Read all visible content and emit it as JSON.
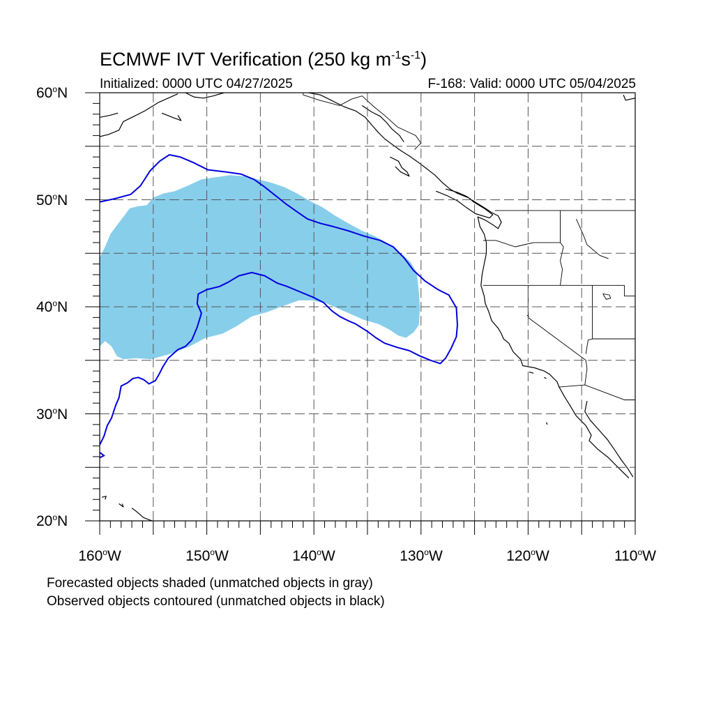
{
  "title": {
    "main": "ECMWF IVT Verification (250 kg m",
    "exp1": "-1",
    "mid": "s",
    "exp2": "-1",
    "close": ")"
  },
  "subtitle": {
    "initialized": "Initialized: 0000 UTC 04/27/2025",
    "valid": "F-168: Valid: 0000 UTC 05/04/2025"
  },
  "axes": {
    "lat_labels": [
      {
        "num": "60",
        "deg": "o",
        "hem": "N"
      },
      {
        "num": "50",
        "deg": "o",
        "hem": "N"
      },
      {
        "num": "40",
        "deg": "o",
        "hem": "N"
      },
      {
        "num": "30",
        "deg": "o",
        "hem": "N"
      },
      {
        "num": "20",
        "deg": "o",
        "hem": "N"
      }
    ],
    "lon_labels": [
      {
        "num": "160",
        "deg": "o",
        "hem": "W"
      },
      {
        "num": "150",
        "deg": "o",
        "hem": "W"
      },
      {
        "num": "140",
        "deg": "o",
        "hem": "W"
      },
      {
        "num": "130",
        "deg": "o",
        "hem": "W"
      },
      {
        "num": "120",
        "deg": "o",
        "hem": "W"
      },
      {
        "num": "110",
        "deg": "o",
        "hem": "W"
      }
    ],
    "lat_range": [
      20,
      60
    ],
    "lon_range": [
      -160,
      -110
    ],
    "grid_spacing_deg": 5
  },
  "map": {
    "forecast_color": "#87CEEB",
    "observed_color": "#0000DD",
    "coast_color": "#000000",
    "forecast_object": [
      [
        -160,
        44.6
      ],
      [
        -159.5,
        45.6
      ],
      [
        -159,
        46.8
      ],
      [
        -158.4,
        47.6
      ],
      [
        -157.8,
        48.4
      ],
      [
        -157.2,
        49.2
      ],
      [
        -156.4,
        49.4
      ],
      [
        -155.6,
        49.5
      ],
      [
        -155,
        50.2
      ],
      [
        -154,
        50.6
      ],
      [
        -153,
        50.8
      ],
      [
        -151.8,
        51.3
      ],
      [
        -150.5,
        51.9
      ],
      [
        -149.2,
        52.1
      ],
      [
        -147.8,
        52.3
      ],
      [
        -146.5,
        52.2
      ],
      [
        -145.2,
        51.9
      ],
      [
        -144,
        51.6
      ],
      [
        -142.8,
        51.2
      ],
      [
        -141.6,
        50.6
      ],
      [
        -140.4,
        49.9
      ],
      [
        -139.2,
        49.3
      ],
      [
        -138,
        48.5
      ],
      [
        -136.8,
        47.8
      ],
      [
        -135.5,
        47.1
      ],
      [
        -134.3,
        46.6
      ],
      [
        -133.1,
        45.9
      ],
      [
        -132,
        45.1
      ],
      [
        -131,
        44.2
      ],
      [
        -130.4,
        43.2
      ],
      [
        -130.2,
        41.4
      ],
      [
        -130.1,
        39.8
      ],
      [
        -130.2,
        38.3
      ],
      [
        -130.7,
        37.6
      ],
      [
        -131.4,
        37.1
      ],
      [
        -132.1,
        37.3
      ],
      [
        -133,
        37.9
      ],
      [
        -134,
        38.4
      ],
      [
        -135.4,
        38.8
      ],
      [
        -137.2,
        39.6
      ],
      [
        -138.8,
        40.3
      ],
      [
        -140.2,
        40.6
      ],
      [
        -141.4,
        40.6
      ],
      [
        -142.8,
        40.1
      ],
      [
        -144.4,
        39.5
      ],
      [
        -145.8,
        39.1
      ],
      [
        -147.2,
        38.2
      ],
      [
        -148.5,
        37.5
      ],
      [
        -150.1,
        37.1
      ],
      [
        -151.6,
        36.3
      ],
      [
        -153.4,
        35.6
      ],
      [
        -155.2,
        35.1
      ],
      [
        -156.6,
        35.2
      ],
      [
        -157.8,
        35.1
      ],
      [
        -158.4,
        35.4
      ],
      [
        -158.9,
        36.3
      ],
      [
        -159.5,
        36.8
      ],
      [
        -160,
        36.3
      ]
    ],
    "observed_outer": [
      [
        -160,
        49.8
      ],
      [
        -158.6,
        50.1
      ],
      [
        -157.1,
        50.5
      ],
      [
        -156.2,
        51.3
      ],
      [
        -155.3,
        52.7
      ],
      [
        -154.4,
        53.6
      ],
      [
        -153.5,
        54.2
      ],
      [
        -152.5,
        54
      ],
      [
        -151.3,
        53.5
      ],
      [
        -149.9,
        52.8
      ],
      [
        -148.2,
        52.6
      ],
      [
        -146.8,
        52.4
      ],
      [
        -145.6,
        51.9
      ],
      [
        -144.6,
        51.2
      ],
      [
        -143.6,
        50.4
      ],
      [
        -142.6,
        49.6
      ],
      [
        -141.6,
        48.9
      ],
      [
        -140.6,
        48.2
      ],
      [
        -139.4,
        47.8
      ],
      [
        -138.2,
        47.5
      ],
      [
        -136.8,
        47.1
      ],
      [
        -135.3,
        46.6
      ],
      [
        -133.8,
        46.2
      ],
      [
        -132.6,
        45.6
      ],
      [
        -131.6,
        44.6
      ],
      [
        -130.7,
        43.4
      ],
      [
        -129.6,
        42.4
      ],
      [
        -128.4,
        41.6
      ],
      [
        -127.4,
        41.1
      ],
      [
        -126.7,
        39.9
      ],
      [
        -126.6,
        38.3
      ],
      [
        -126.7,
        37.2
      ],
      [
        -127.2,
        36.1
      ],
      [
        -127.7,
        35.2
      ],
      [
        -128.2,
        34.7
      ],
      [
        -129.1,
        35
      ],
      [
        -130.1,
        35.4
      ],
      [
        -131.1,
        35.9
      ],
      [
        -132.2,
        36.2
      ],
      [
        -133.4,
        36.6
      ],
      [
        -134.2,
        37.1
      ],
      [
        -135,
        37.7
      ],
      [
        -136.1,
        38.4
      ],
      [
        -136.8,
        38.7
      ],
      [
        -137.6,
        39.1
      ],
      [
        -138.3,
        39.6
      ],
      [
        -139.1,
        40.4
      ],
      [
        -140.1,
        40.9
      ],
      [
        -141.3,
        41.4
      ],
      [
        -142.5,
        41.9
      ],
      [
        -143.4,
        42.2
      ],
      [
        -144.6,
        42.9
      ],
      [
        -145.8,
        43.2
      ],
      [
        -147,
        42.9
      ],
      [
        -148,
        42.3
      ],
      [
        -148.8,
        41.9
      ],
      [
        -150,
        41.6
      ],
      [
        -150.8,
        41.2
      ],
      [
        -150.9,
        40.3
      ],
      [
        -150.5,
        39.4
      ],
      [
        -150.9,
        38.1
      ],
      [
        -151.4,
        36.9
      ],
      [
        -152,
        36.3
      ],
      [
        -152.7,
        36
      ],
      [
        -153.6,
        35.2
      ],
      [
        -154.1,
        34.4
      ],
      [
        -154.4,
        33.8
      ],
      [
        -154.8,
        33.1
      ],
      [
        -155.4,
        32.8
      ],
      [
        -155.9,
        33.2
      ],
      [
        -156.4,
        33.4
      ],
      [
        -156.9,
        33.3
      ],
      [
        -157.4,
        32.9
      ],
      [
        -158,
        32.6
      ],
      [
        -158.2,
        31.5
      ],
      [
        -158.5,
        30.8
      ],
      [
        -158.9,
        29.6
      ],
      [
        -159.3,
        28.9
      ],
      [
        -159.6,
        27.9
      ],
      [
        -160,
        27.1
      ]
    ],
    "observed_tail": [
      [
        -160,
        26.4
      ],
      [
        -159.6,
        26.1
      ],
      [
        -160,
        25.9
      ]
    ],
    "coastlines": [
      [
        [
          -160,
          55.9
        ],
        [
          -159.2,
          56.1
        ],
        [
          -158.2,
          56.5
        ],
        [
          -157.8,
          57.3
        ],
        [
          -156.8,
          57.8
        ],
        [
          -155.8,
          58.3
        ],
        [
          -154.5,
          59.1
        ],
        [
          -153.6,
          59.5
        ],
        [
          -152.7,
          59.9
        ]
      ],
      [
        [
          -160,
          57.7
        ],
        [
          -159,
          57.9
        ],
        [
          -158.3,
          58.1
        ]
      ],
      [
        [
          -154.2,
          58.1
        ],
        [
          -153.2,
          57.7
        ],
        [
          -152.4,
          57.4
        ],
        [
          -152.7,
          57.9
        ]
      ],
      [
        [
          -152,
          60
        ],
        [
          -151.2,
          59.6
        ],
        [
          -150.3,
          59.5
        ],
        [
          -149.4,
          59.7
        ],
        [
          -148.4,
          60
        ]
      ],
      [
        [
          -140.5,
          60
        ],
        [
          -139.4,
          59.8
        ],
        [
          -138.4,
          59.3
        ],
        [
          -137.2,
          58.7
        ],
        [
          -136.1,
          58.3
        ],
        [
          -135.2,
          57.7
        ],
        [
          -134.6,
          57
        ],
        [
          -134,
          56.3
        ],
        [
          -133.4,
          55.7
        ],
        [
          -132.6,
          55.1
        ],
        [
          -131.9,
          54.6
        ],
        [
          -131.1,
          54.1
        ],
        [
          -130.4,
          53.6
        ],
        [
          -129.6,
          53
        ],
        [
          -128.7,
          52.3
        ],
        [
          -128,
          51.6
        ],
        [
          -127.3,
          51
        ],
        [
          -126.6,
          50.6
        ],
        [
          -125.6,
          50.2
        ],
        [
          -124.8,
          49.7
        ],
        [
          -124,
          49.2
        ],
        [
          -123.4,
          48.8
        ],
        [
          -122.8,
          48.5
        ],
        [
          -122.5,
          47.9
        ],
        [
          -122.8,
          47.3
        ],
        [
          -123.2,
          47.6
        ],
        [
          -124,
          48.1
        ],
        [
          -124.7,
          48.4
        ],
        [
          -124.5,
          47.5
        ],
        [
          -124.1,
          46.8
        ],
        [
          -123.9,
          46
        ],
        [
          -123.9,
          45
        ],
        [
          -124.1,
          44
        ],
        [
          -124.3,
          43
        ],
        [
          -124.4,
          42
        ],
        [
          -124.1,
          41
        ],
        [
          -124,
          40.3
        ],
        [
          -123.7,
          39.6
        ],
        [
          -123.4,
          38.7
        ],
        [
          -122.8,
          38
        ],
        [
          -122.5,
          37.5
        ],
        [
          -122.3,
          37
        ],
        [
          -121.8,
          36.6
        ],
        [
          -121.4,
          35.8
        ],
        [
          -120.7,
          35.1
        ],
        [
          -120.5,
          34.5
        ],
        [
          -119.4,
          34.3
        ],
        [
          -118.5,
          34
        ],
        [
          -118,
          33.7
        ],
        [
          -117.3,
          33
        ],
        [
          -117.1,
          32.5
        ],
        [
          -116.6,
          31.6
        ],
        [
          -116.1,
          30.8
        ],
        [
          -115.5,
          29.8
        ],
        [
          -114.6,
          28.9
        ],
        [
          -114.1,
          28
        ],
        [
          -114.3,
          27.5
        ],
        [
          -113.5,
          26.7
        ],
        [
          -112.5,
          25.9
        ],
        [
          -111.6,
          25
        ],
        [
          -110.6,
          24
        ]
      ],
      [
        [
          -135.5,
          58.8
        ],
        [
          -134.6,
          58.2
        ],
        [
          -133.8,
          57.8
        ],
        [
          -133.2,
          57.2
        ],
        [
          -132.7,
          56.6
        ],
        [
          -132,
          56
        ],
        [
          -131.6,
          55.4
        ]
      ],
      [
        [
          -132.9,
          54
        ],
        [
          -132.1,
          53.6
        ],
        [
          -131.8,
          53
        ],
        [
          -131.3,
          52.6
        ],
        [
          -131.1,
          52.2
        ],
        [
          -131.9,
          52.6
        ],
        [
          -132.4,
          53.1
        ]
      ],
      [
        [
          -128.6,
          50.8
        ],
        [
          -127.6,
          50.4
        ],
        [
          -126.6,
          49.9
        ],
        [
          -125.8,
          49.3
        ],
        [
          -124.9,
          48.7
        ],
        [
          -123.6,
          48.3
        ],
        [
          -123.3,
          48.6
        ],
        [
          -124.1,
          49.2
        ],
        [
          -125.1,
          49.8
        ],
        [
          -125.7,
          50.3
        ],
        [
          -126.6,
          50.7
        ],
        [
          -127.7,
          51
        ]
      ],
      [
        [
          -114.5,
          31.2
        ],
        [
          -114.7,
          30.2
        ],
        [
          -114.2,
          29.4
        ],
        [
          -113.4,
          28.5
        ],
        [
          -112.6,
          27.6
        ],
        [
          -111.9,
          26.6
        ],
        [
          -111.3,
          25.7
        ],
        [
          -110.7,
          24.9
        ],
        [
          -110.2,
          24.1
        ]
      ],
      [
        [
          -110,
          59.5
        ],
        [
          -110.9,
          59.3
        ],
        [
          -111.1,
          59.8
        ]
      ],
      [
        [
          -159.8,
          22.2
        ],
        [
          -159.4,
          22.3
        ],
        [
          -159.5,
          22
        ]
      ],
      [
        [
          -158.2,
          21.6
        ],
        [
          -157.8,
          21.3
        ],
        [
          -157.9,
          21.6
        ]
      ],
      [
        [
          -157,
          21.2
        ],
        [
          -156.6,
          20.9
        ],
        [
          -155.9,
          20.3
        ],
        [
          -155.1,
          20
        ],
        [
          -155.5,
          19.6
        ]
      ],
      [
        [
          -119.9,
          33.9
        ],
        [
          -119.5,
          33.8
        ]
      ],
      [
        [
          -118.5,
          33.4
        ],
        [
          -118.3,
          33.3
        ]
      ],
      [
        [
          -118.3,
          29.2
        ],
        [
          -118.2,
          29
        ]
      ]
    ],
    "borders": [
      [
        [
          -141,
          60
        ],
        [
          -141,
          59.8
        ],
        [
          -139.5,
          59.3
        ],
        [
          -137.6,
          58.8
        ],
        [
          -136.5,
          59.4
        ],
        [
          -135.5,
          59.7
        ],
        [
          -134.4,
          58.7
        ],
        [
          -133.3,
          57.8
        ],
        [
          -132.2,
          56.8
        ],
        [
          -130.5,
          56
        ],
        [
          -130,
          55.3
        ],
        [
          -130.6,
          54.7
        ]
      ],
      [
        [
          -123.1,
          49
        ],
        [
          -110,
          49
        ]
      ],
      [
        [
          -117,
          49
        ],
        [
          -117,
          46
        ],
        [
          -116.7,
          45.6
        ],
        [
          -117,
          44.3
        ],
        [
          -116.8,
          43.5
        ],
        [
          -117,
          42
        ]
      ],
      [
        [
          -124.2,
          46.2
        ],
        [
          -123,
          46.2
        ],
        [
          -121.2,
          45.6
        ],
        [
          -119.5,
          46
        ],
        [
          -117,
          46
        ]
      ],
      [
        [
          -124.2,
          42
        ],
        [
          -111,
          42
        ]
      ],
      [
        [
          -120,
          42
        ],
        [
          -120,
          39
        ],
        [
          -114.6,
          35
        ],
        [
          -114.5,
          34.2
        ],
        [
          -114.7,
          32.7
        ]
      ],
      [
        [
          -114,
          42
        ],
        [
          -114,
          37
        ],
        [
          -114.4,
          36.9
        ],
        [
          -114.6,
          35.6
        ]
      ],
      [
        [
          -111,
          42
        ],
        [
          -111,
          41
        ],
        [
          -110,
          41
        ]
      ],
      [
        [
          -117.1,
          32.5
        ],
        [
          -114.7,
          32.7
        ],
        [
          -111,
          31.3
        ],
        [
          -110,
          31.3
        ]
      ],
      [
        [
          -115.5,
          48.2
        ],
        [
          -114.8,
          46.6
        ],
        [
          -114.5,
          45.8
        ],
        [
          -113.3,
          44.8
        ],
        [
          -112.5,
          44.5
        ]
      ],
      [
        [
          -110,
          37
        ],
        [
          -114,
          37
        ]
      ]
    ],
    "lakes": [
      [
        [
          -113,
          41.2
        ],
        [
          -112.4,
          41.1
        ],
        [
          -112.3,
          40.8
        ],
        [
          -112.7,
          40.7
        ],
        [
          -112.9,
          41
        ]
      ],
      [
        [
          -120.1,
          39.2
        ],
        [
          -119.9,
          39.1
        ]
      ]
    ]
  },
  "footnotes": {
    "line1": "Forecasted objects shaded (unmatched objects in gray)",
    "line2": "Observed objects contoured (unmatched objects in black)"
  }
}
